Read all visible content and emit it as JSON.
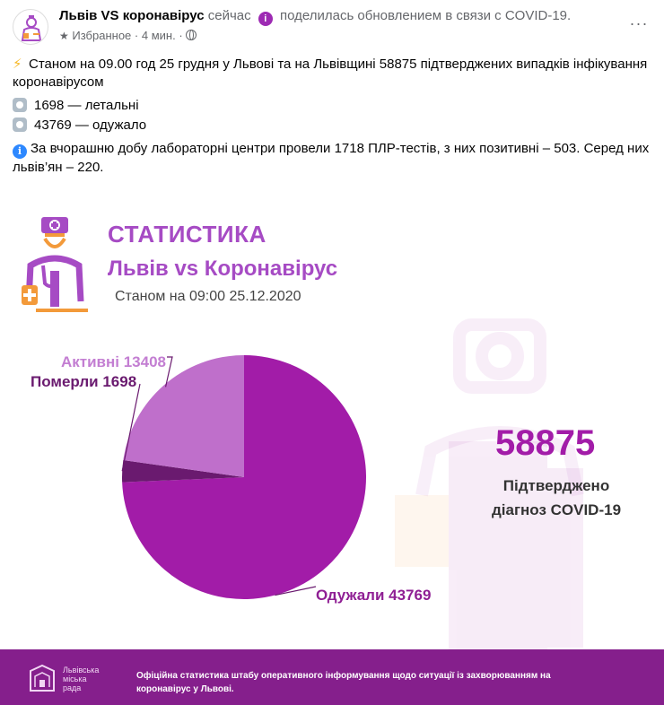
{
  "post": {
    "page_name": "Львів VS коронавірус",
    "time_now": "сейчас",
    "action": "поделилась обновлением в связи с COVID-19.",
    "favorites": "Избранное",
    "separator": "·",
    "time_ago": "4 мин.",
    "more": "···"
  },
  "body": {
    "line1": "Станом на 09.00 год 25 грудня у Львові та на Львівщині 58875 підтверджених випадків інфікування коронавірусом",
    "deaths": "1698 — летальні",
    "recovered": "43769 — одужало",
    "tests": "За вчорашню добу лабораторні центри провели 1718 ПЛР-тестів, з них позитивні – 503. Серед них львів’ян – 220."
  },
  "infographic": {
    "title": "СТАТИСТИКА",
    "subtitle": "Львів vs Коронавірус",
    "date": "Станом на 09:00 25.12.2020",
    "total": "58875",
    "total_caption_1": "Підтверджено",
    "total_caption_2": "діагноз COVID-19",
    "footer_org_1": "Львівська",
    "footer_org_2": "міська",
    "footer_org_3": "рада",
    "footer_text": "Офіційна статистика штабу оперативного інформування щодо ситуації із захворюванням на коронавірус у Львові."
  },
  "chart_data": {
    "type": "pie",
    "slices": [
      {
        "label": "Активні 13408",
        "category": "Активні",
        "value": 13408,
        "color": "#bf6fcb"
      },
      {
        "label": "Померли 1698",
        "category": "Померли",
        "value": 1698,
        "color": "#6a1a6f"
      },
      {
        "label": "Одужали 43769",
        "category": "Одужали",
        "value": 43769,
        "color": "#a21ca8"
      }
    ]
  }
}
